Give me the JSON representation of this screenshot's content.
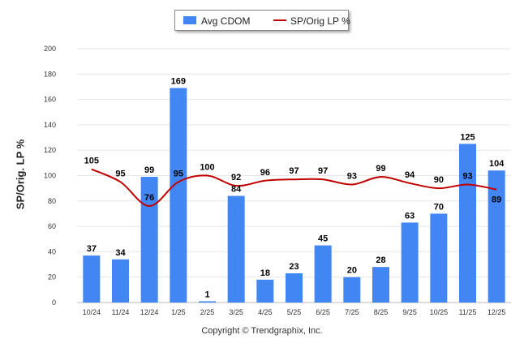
{
  "colors": {
    "bar": "#4286f4",
    "line": "#c00000",
    "grid": "#e6e6e6",
    "axis": "#bbbbbb"
  },
  "legend": {
    "bar_label": "Avg CDOM",
    "line_label": "SP/Orig LP %"
  },
  "copyright": "Copyright © Trendgraphix, Inc.",
  "chart_data": {
    "type": "bar",
    "title": "",
    "xlabel": "",
    "ylabel": "SP/Orig. LP %",
    "ylim": [
      0,
      200
    ],
    "yticks": [
      "0",
      "20",
      "40",
      "60",
      "80",
      "100",
      "120",
      "140",
      "160",
      "180",
      "200"
    ],
    "categories": [
      "10/24",
      "11/24",
      "12/24",
      "1/25",
      "2/25",
      "3/25",
      "4/25",
      "5/25",
      "6/25",
      "7/25",
      "8/25",
      "9/25",
      "10/25",
      "11/25",
      "12/25"
    ],
    "series": [
      {
        "name": "Avg CDOM",
        "kind": "bar",
        "values": [
          37,
          34,
          99,
          169,
          1,
          84,
          18,
          23,
          45,
          20,
          28,
          63,
          70,
          125,
          104
        ]
      },
      {
        "name": "SP/Orig LP %",
        "kind": "line",
        "values": [
          105,
          95,
          76,
          95,
          100,
          92,
          96,
          97,
          97,
          93,
          99,
          94,
          90,
          93,
          89
        ]
      }
    ],
    "grid": true,
    "legend_position": "top-center"
  }
}
